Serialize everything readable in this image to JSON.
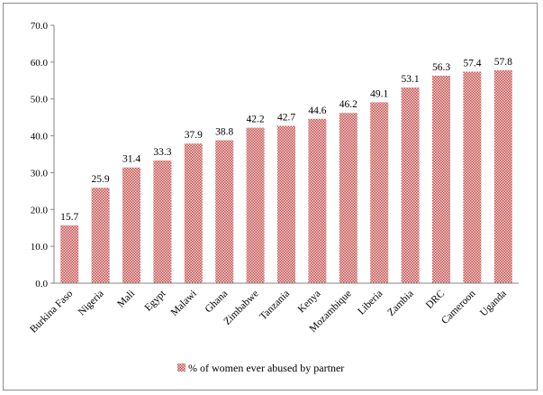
{
  "chart_data": {
    "type": "bar",
    "categories": [
      "Burkina Faso",
      "Nigeria",
      "Mali",
      "Egypt",
      "Malawi",
      "Ghana",
      "Zimbabwe",
      "Tanzania",
      "Kenya",
      "Mozambique",
      "Liberia",
      "Zambia",
      "DRC",
      "Cameroon",
      "Uganda"
    ],
    "series": [
      {
        "name": "% of women ever abused by partner",
        "values": [
          15.7,
          25.9,
          31.4,
          33.3,
          37.9,
          38.8,
          42.2,
          42.7,
          44.6,
          46.2,
          49.1,
          53.1,
          56.3,
          57.4,
          57.8
        ],
        "value_labels": [
          "15.7",
          "25.9",
          "31.4",
          "33.3",
          "37.9",
          "38.8",
          "42.2",
          "42.7",
          "44.6",
          "46.2",
          "49.1",
          "53.1",
          "56.3",
          "57.4",
          "57.8"
        ]
      }
    ],
    "ylim": [
      0,
      70
    ],
    "yticks": [
      "0.0",
      "10.0",
      "20.0",
      "30.0",
      "40.0",
      "50.0",
      "60.0",
      "70.0"
    ],
    "grid": false,
    "legend_position": "bottom",
    "colors": {
      "bar_fill": "#f2c4c8",
      "bar_pattern": "#c0504d",
      "axis": "#868686"
    }
  }
}
